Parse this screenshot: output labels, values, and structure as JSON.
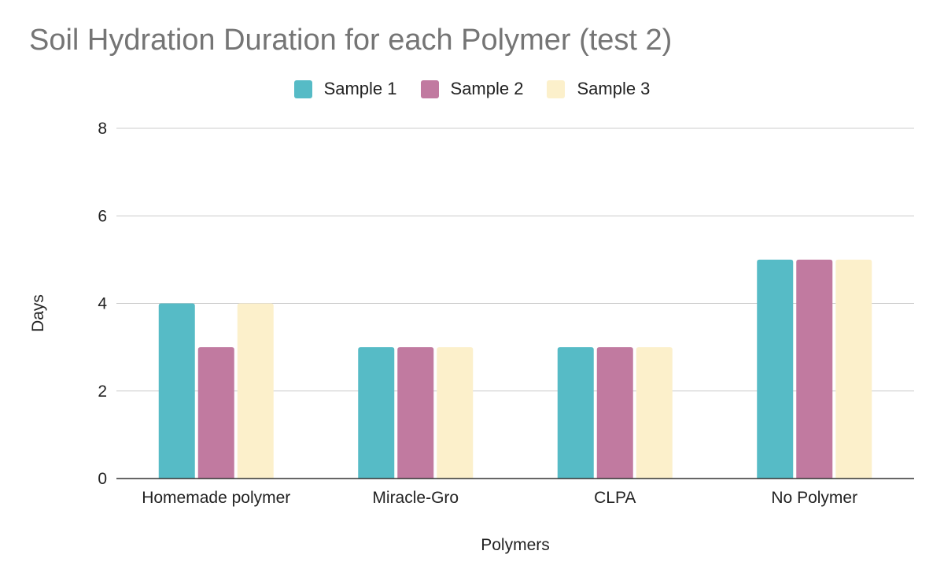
{
  "chart_data": {
    "type": "bar",
    "title": "Soil Hydration Duration for each Polymer (test 2)",
    "xlabel": "Polymers",
    "ylabel": "Days",
    "categories": [
      "Homemade polymer",
      "Miracle-Gro",
      "CLPA",
      "No Polymer"
    ],
    "series": [
      {
        "name": "Sample 1",
        "color": "#56bbc6",
        "values": [
          4,
          3,
          3,
          5
        ]
      },
      {
        "name": "Sample 2",
        "color": "#c17aa0",
        "values": [
          3,
          3,
          3,
          5
        ]
      },
      {
        "name": "Sample 3",
        "color": "#fcf0cb",
        "values": [
          4,
          3,
          3,
          5
        ]
      }
    ],
    "ylim": [
      0,
      8
    ],
    "yticks": [
      0,
      2,
      4,
      6,
      8
    ],
    "grid": true,
    "legend_position": "top"
  }
}
